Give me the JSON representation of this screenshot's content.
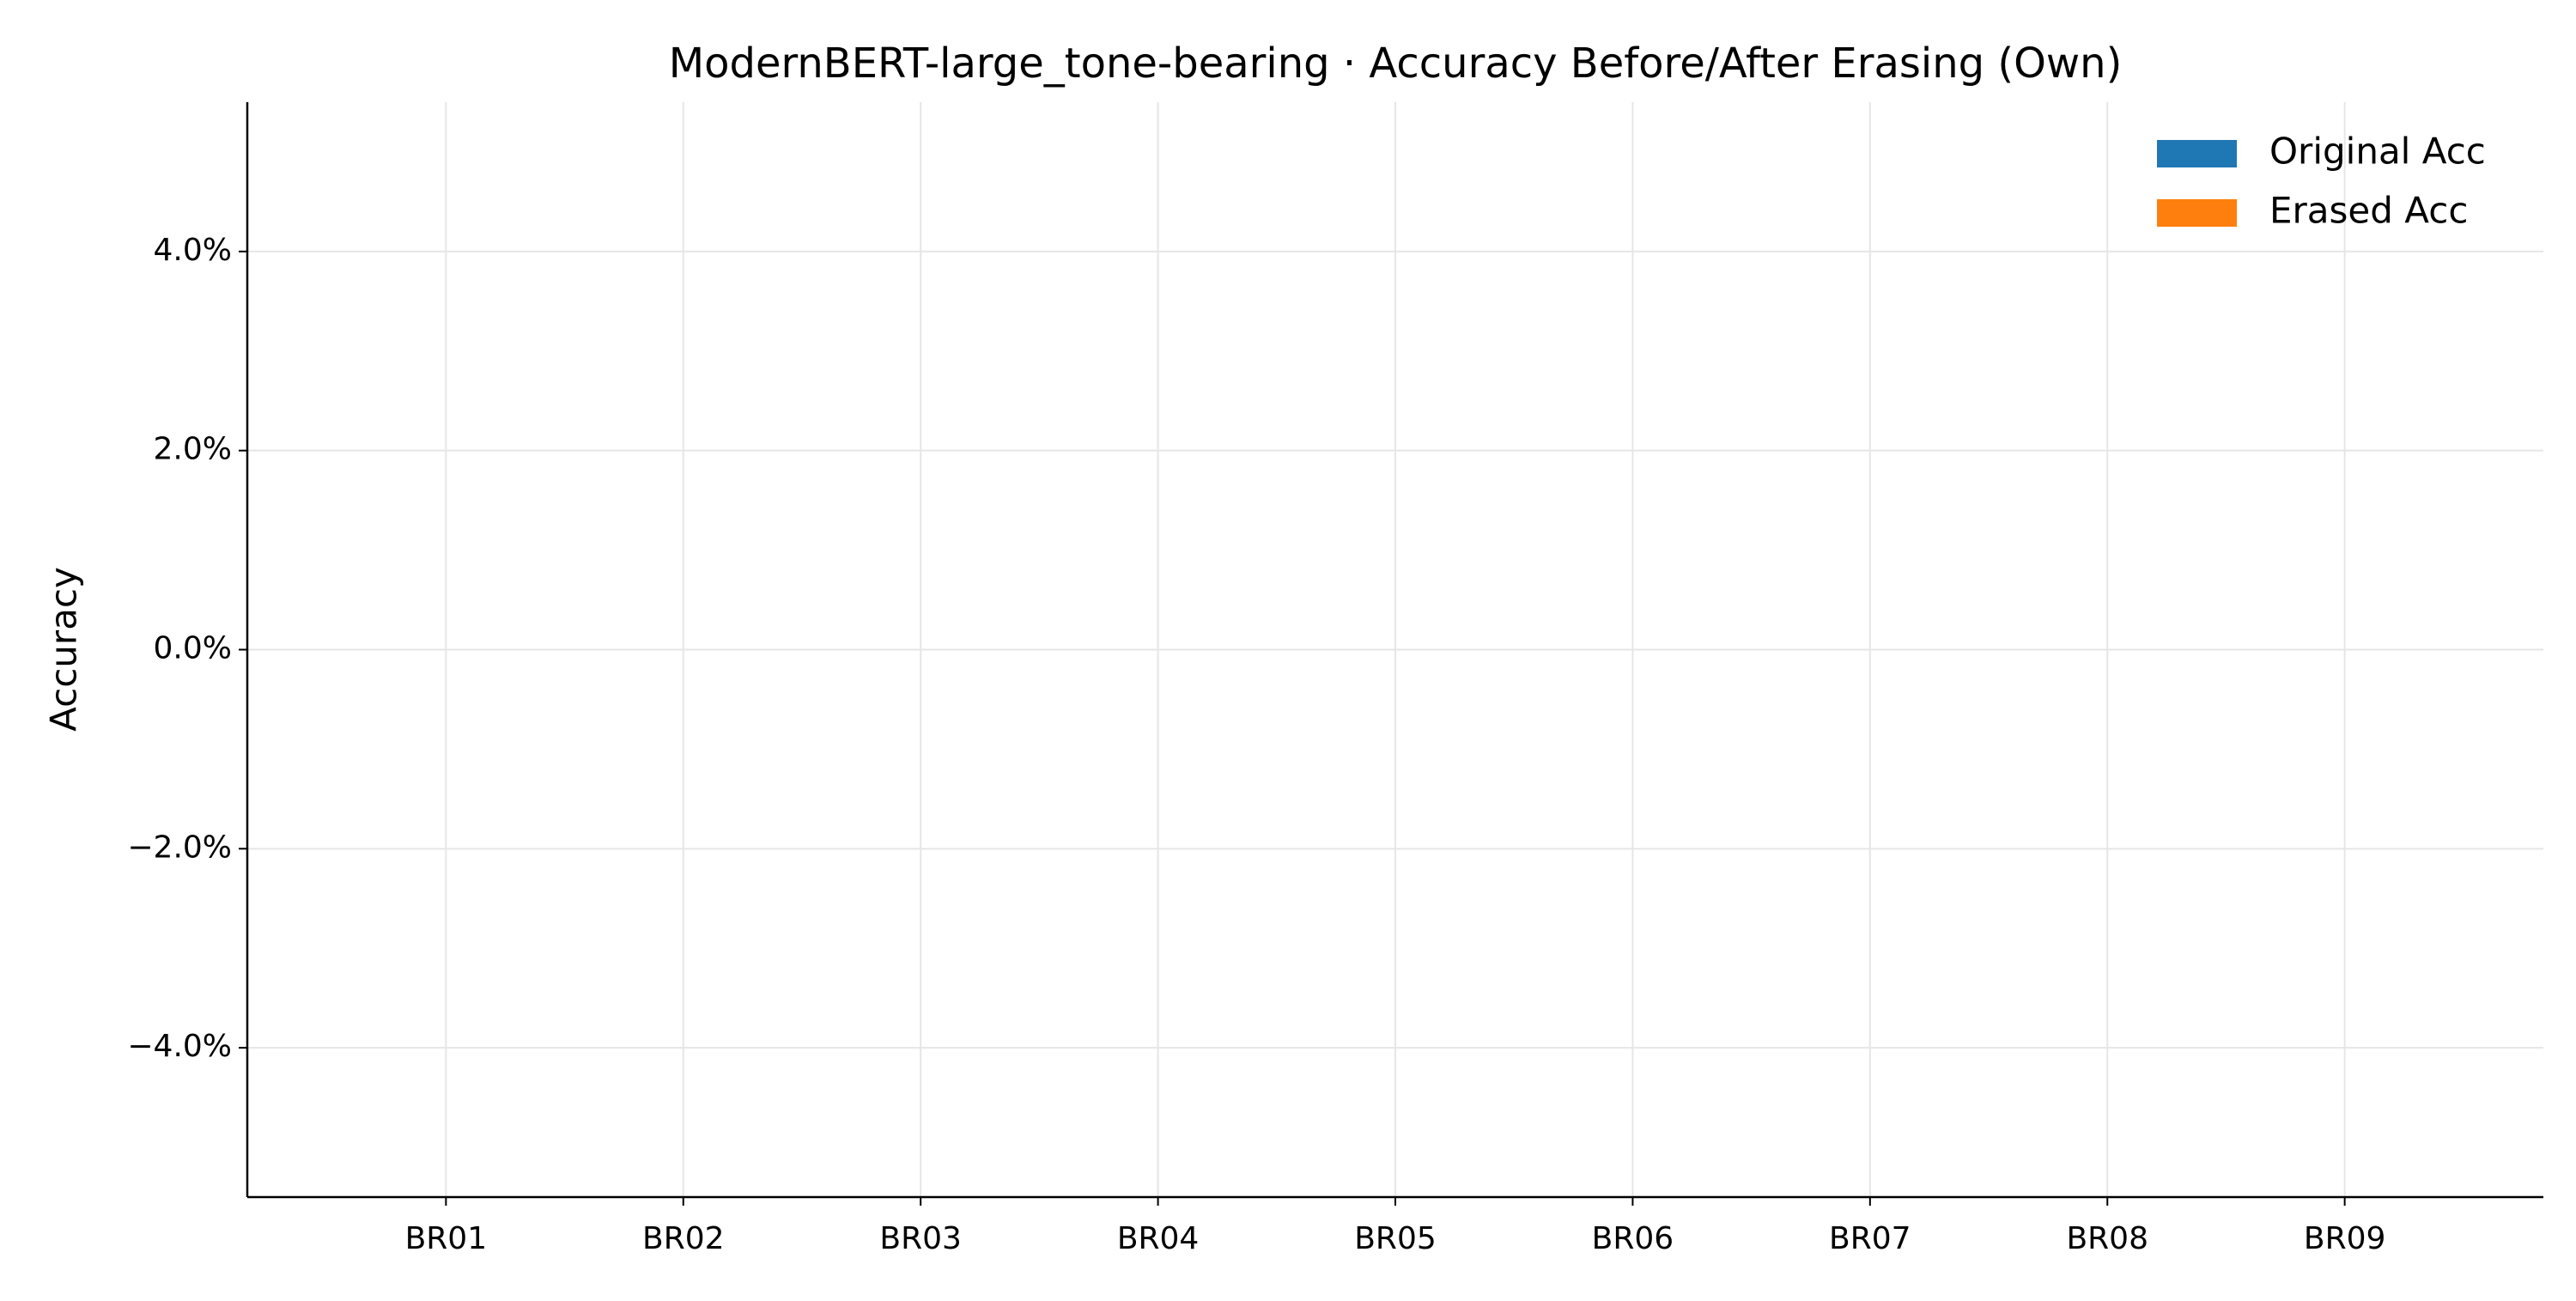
{
  "chart_data": {
    "type": "bar",
    "title": "ModernBERT-large_tone-bearing · Accuracy Before/After Erasing (Own)",
    "y_label": "Accuracy",
    "categories": [
      "BR01",
      "BR02",
      "BR03",
      "BR04",
      "BR05",
      "BR06",
      "BR07",
      "BR08",
      "BR09"
    ],
    "series": [
      {
        "name": "Original Acc",
        "color": "#1f77b4",
        "values": [
          0,
          0,
          0,
          0,
          0,
          0,
          0,
          0,
          0
        ]
      },
      {
        "name": "Erased Acc",
        "color": "#ff7f0e",
        "values": [
          0,
          0,
          0,
          0,
          0,
          0,
          0,
          0,
          0
        ]
      }
    ],
    "ylim": [
      -5.5,
      5.5
    ],
    "yticks": [
      {
        "value": -4,
        "label": "−4.0%"
      },
      {
        "value": -2,
        "label": "−2.0%"
      },
      {
        "value": 0,
        "label": "0.0%"
      },
      {
        "value": 2,
        "label": "2.0%"
      },
      {
        "value": 4,
        "label": "4.0%"
      }
    ],
    "grid": true,
    "legend": "upper right"
  }
}
